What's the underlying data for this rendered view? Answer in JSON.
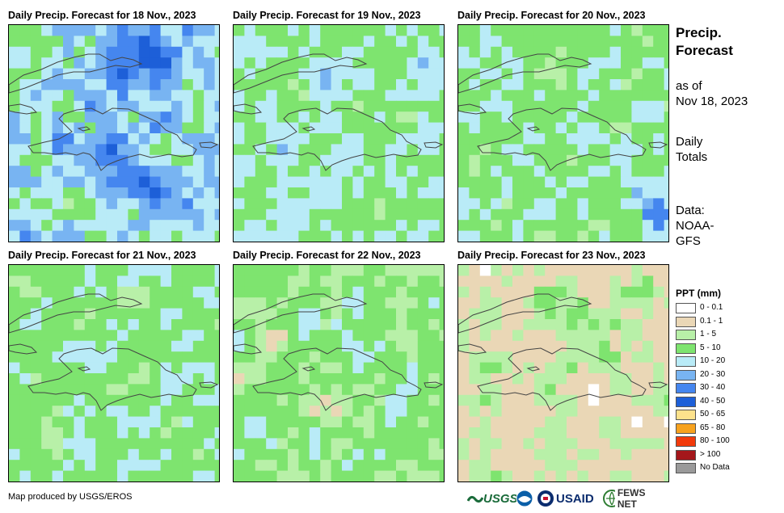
{
  "panels": [
    {
      "title": "Daily Precip. Forecast for 18 Nov., 2023",
      "seed": 11,
      "scenario": "wet"
    },
    {
      "title": "Daily Precip. Forecast for 19 Nov., 2023",
      "seed": 23,
      "scenario": "moderate"
    },
    {
      "title": "Daily Precip. Forecast for 20 Nov., 2023",
      "seed": 37,
      "scenario": "moderate-light"
    },
    {
      "title": "Daily Precip. Forecast for 21 Nov., 2023",
      "seed": 41,
      "scenario": "light"
    },
    {
      "title": "Daily Precip. Forecast for 22 Nov., 2023",
      "seed": 53,
      "scenario": "dry"
    },
    {
      "title": "Daily Precip. Forecast for 23 Nov., 2023",
      "seed": 67,
      "scenario": "very-dry"
    }
  ],
  "side": {
    "title_line1": "Precip.",
    "title_line2": "Forecast",
    "asof_line1": "as of",
    "asof_line2": "Nov 18, 2023",
    "totals_line1": "Daily",
    "totals_line2": "Totals",
    "data_line1": "Data:",
    "data_line2": "NOAA-",
    "data_line3": "GFS"
  },
  "legend": {
    "title": "PPT (mm)",
    "items": [
      {
        "label": "0 - 0.1",
        "color": "#ffffff"
      },
      {
        "label": "0.1 - 1",
        "color": "#ead7b6"
      },
      {
        "label": "1 - 5",
        "color": "#b8f0a8"
      },
      {
        "label": "5 - 10",
        "color": "#7ee46f"
      },
      {
        "label": "10 - 20",
        "color": "#b9ebf7"
      },
      {
        "label": "20 - 30",
        "color": "#78b4f2"
      },
      {
        "label": "30 - 40",
        "color": "#4586ef"
      },
      {
        "label": "40 - 50",
        "color": "#1d5fd8"
      },
      {
        "label": "50 - 65",
        "color": "#fde28c"
      },
      {
        "label": "65 - 80",
        "color": "#f7a21e"
      },
      {
        "label": "80 - 100",
        "color": "#f23a0b"
      },
      {
        "label": "> 100",
        "color": "#a4171b"
      },
      {
        "label": "No Data",
        "color": "#9a9a9a"
      }
    ]
  },
  "credit": "Map produced by USGS/EROS",
  "logos": {
    "usgs": "USGS",
    "usaid": "USAID",
    "fews": "FEWS NET"
  }
}
